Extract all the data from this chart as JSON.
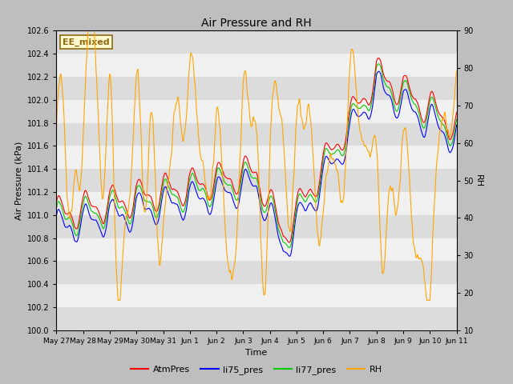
{
  "title": "Air Pressure and RH",
  "xlabel": "Time",
  "ylabel_left": "Air Pressure (kPa)",
  "ylabel_right": "RH",
  "ylim_left": [
    100.0,
    102.6
  ],
  "ylim_right": [
    10,
    90
  ],
  "yticks_left": [
    100.0,
    100.2,
    100.4,
    100.6,
    100.8,
    101.0,
    101.2,
    101.4,
    101.6,
    101.8,
    102.0,
    102.2,
    102.4,
    102.6
  ],
  "yticks_right": [
    10,
    20,
    30,
    40,
    50,
    60,
    70,
    80,
    90
  ],
  "xtick_labels": [
    "May 27",
    "May 28",
    "May 29",
    "May 30",
    "May 31",
    "Jun 1",
    "Jun 2",
    "Jun 3",
    "Jun 4",
    "Jun 5",
    "Jun 6",
    "Jun 7",
    "Jun 8",
    "Jun 9",
    "Jun 10",
    "Jun 11"
  ],
  "annotation_text": "EE_mixed",
  "annotation_color": "#8B6914",
  "annotation_bg": "#FFFACD",
  "bg_color": "#BEBEBE",
  "plot_bg_light": "#F0F0F0",
  "plot_bg_dark": "#DCDCDC",
  "colors": {
    "AtmPres": "#FF0000",
    "li75_pres": "#0000FF",
    "li77_pres": "#00CC00",
    "RH": "#FFA500"
  },
  "legend_labels": [
    "AtmPres",
    "li75_pres",
    "li77_pres",
    "RH"
  ],
  "n_points": 1500,
  "seed": 12345
}
